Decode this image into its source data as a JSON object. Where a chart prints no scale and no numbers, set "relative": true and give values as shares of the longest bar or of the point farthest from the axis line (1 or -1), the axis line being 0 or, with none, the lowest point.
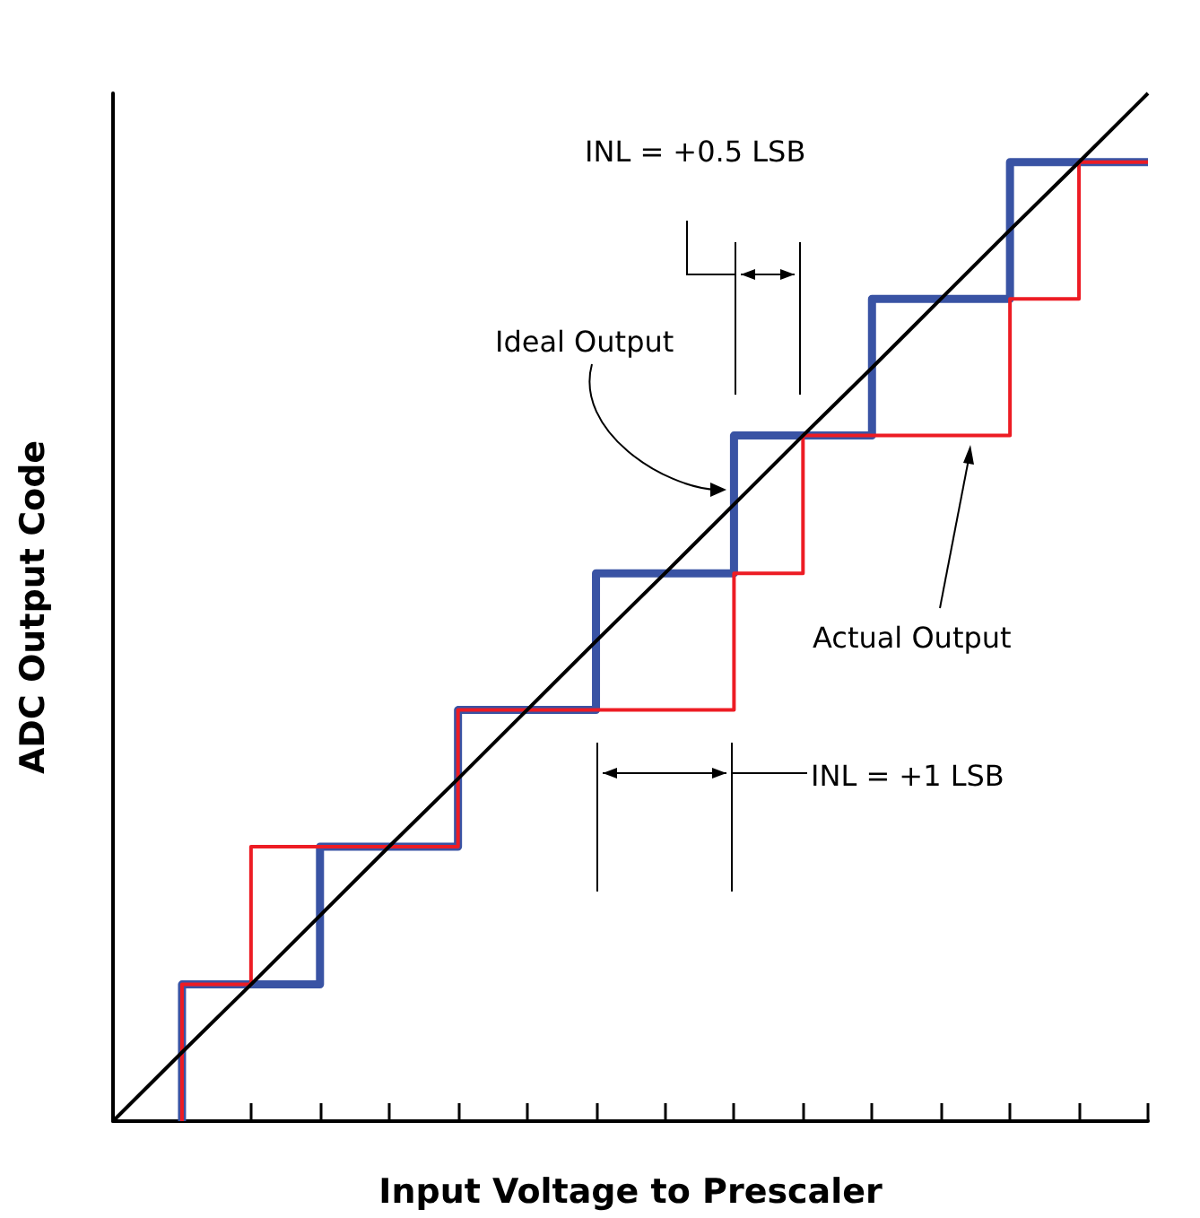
{
  "chart_data": {
    "type": "step",
    "relative": true,
    "xlabel": "Input Voltage to Prescaler",
    "ylabel": "ADC Output Code",
    "categories": [
      null,
      null,
      null,
      null,
      null,
      null,
      null,
      null,
      null,
      null,
      null,
      null,
      null,
      null,
      null,
      null
    ],
    "series": [
      {
        "type": "line",
        "color": "#000000",
        "values": [
          0,
          0.067,
          0.133,
          0.2,
          0.267,
          0.333,
          0.4,
          0.467,
          0.533,
          0.6,
          0.667,
          0.733,
          0.8,
          0.867,
          0.933,
          1
        ]
      },
      {
        "color": "#3953a4",
        "values": [
          null,
          0,
          0.133,
          0.133,
          0.267,
          0.267,
          0.4,
          0.4,
          0.533,
          0.533,
          0.667,
          0.667,
          0.8,
          0.8,
          0.933,
          0.933
        ]
      },
      {
        "color": "#ed1c24",
        "values": [
          null,
          0,
          0.133,
          0.267,
          0.267,
          0.267,
          0.4,
          0.4,
          0.4,
          0.4,
          0.533,
          0.667,
          0.667,
          0.667,
          0.8,
          0.933
        ]
      }
    ],
    "annotations": [
      "INL = +0.5 LSB",
      "Ideal Output",
      "Actual Output",
      "INL = +1 LSB"
    ]
  }
}
